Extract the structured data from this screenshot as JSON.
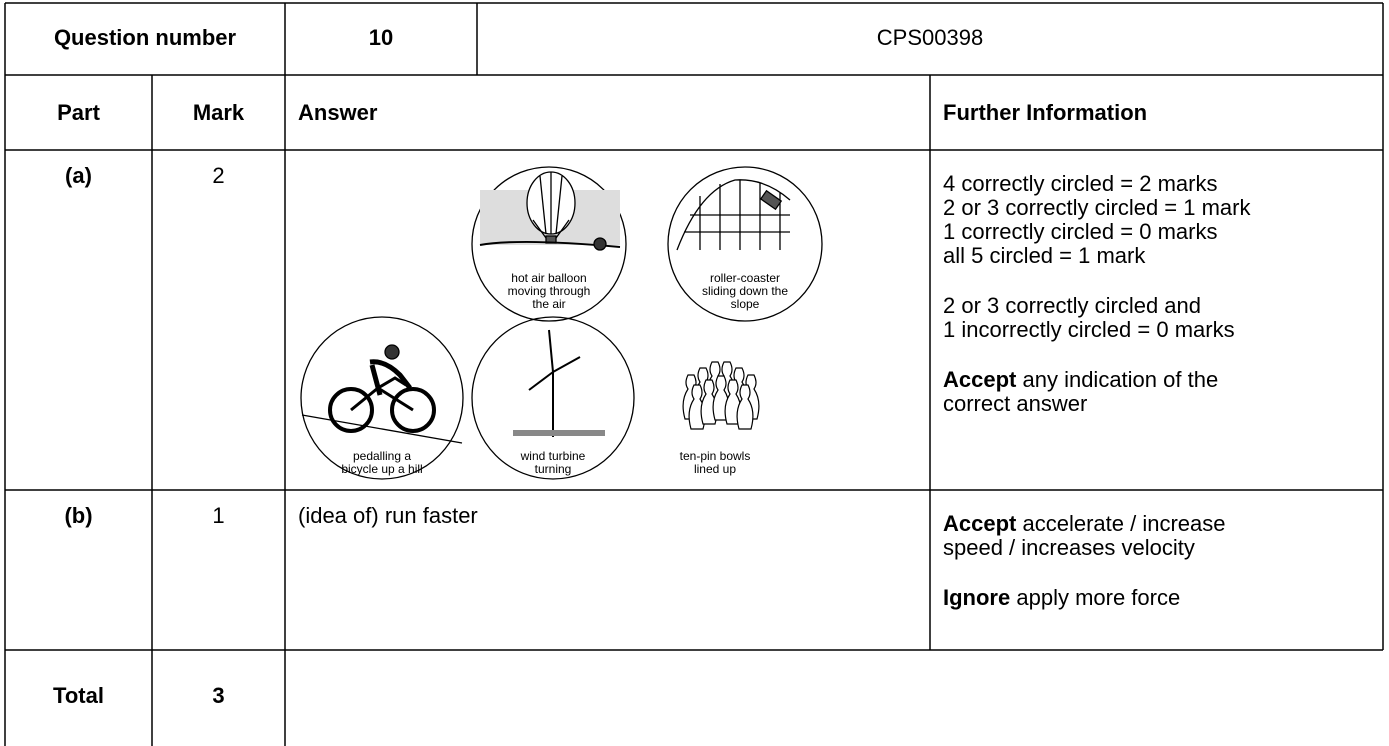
{
  "header": {
    "question_number_label": "Question number",
    "question_number": "10",
    "code": "CPS00398"
  },
  "columns": {
    "part": "Part",
    "mark": "Mark",
    "answer": "Answer",
    "further": "Further Information"
  },
  "rows": [
    {
      "part": "(a)",
      "mark": "2",
      "answer_images": [
        {
          "label": [
            "hot air balloon",
            "moving through",
            "the air"
          ]
        },
        {
          "label": [
            "roller-coaster",
            "sliding down the",
            "slope"
          ]
        },
        {
          "label": [
            "pedalling a",
            "bicycle up a hill"
          ]
        },
        {
          "label": [
            "wind turbine",
            "turning"
          ]
        },
        {
          "label": [
            "ten-pin bowls",
            "lined up"
          ]
        }
      ],
      "further": [
        [
          {
            "text": "4 correctly circled = 2 marks"
          },
          {
            "text": "2 or 3 correctly circled = 1 mark"
          },
          {
            "text": "1 correctly circled = 0 marks"
          },
          {
            "text": "all 5 circled = 1 mark"
          }
        ],
        [
          {
            "text": "2 or 3 correctly circled and"
          },
          {
            "text": "1 incorrectly circled = 0 marks"
          }
        ],
        [
          {
            "bold": "Accept",
            "text": "any indication of the"
          },
          {
            "text": "correct answer"
          }
        ]
      ]
    },
    {
      "part": "(b)",
      "mark": "1",
      "answer": "(idea of) run faster",
      "further": [
        [
          {
            "bold": "Accept",
            "text": "accelerate / increase"
          },
          {
            "text": "speed / increases velocity"
          }
        ],
        [
          {
            "bold": "Ignore",
            "text": "apply more force"
          }
        ]
      ]
    }
  ],
  "total": {
    "label": "Total",
    "mark": "3"
  }
}
